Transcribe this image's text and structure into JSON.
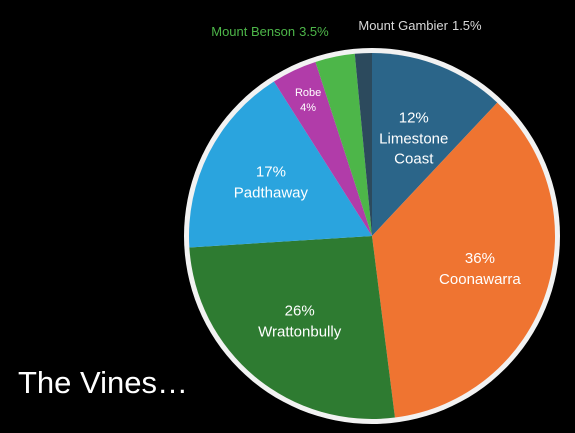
{
  "chart_data": {
    "type": "pie",
    "title": "The Vines…",
    "categories": [
      "Limestone Coast",
      "Coonawarra",
      "Wrattonbully",
      "Padthaway",
      "Robe",
      "Mount Benson",
      "Mount Gambier"
    ],
    "values": [
      12,
      36,
      26,
      17,
      4,
      3.5,
      1.5
    ],
    "value_labels": [
      "12%",
      "36%",
      "26%",
      "17%",
      "4%",
      "3.5%",
      "1.5%"
    ],
    "colors": [
      "#2b6589",
      "#ef7431",
      "#2e7b31",
      "#2aa4de",
      "#b13ca9",
      "#4db649",
      "#2c4a5d"
    ]
  }
}
